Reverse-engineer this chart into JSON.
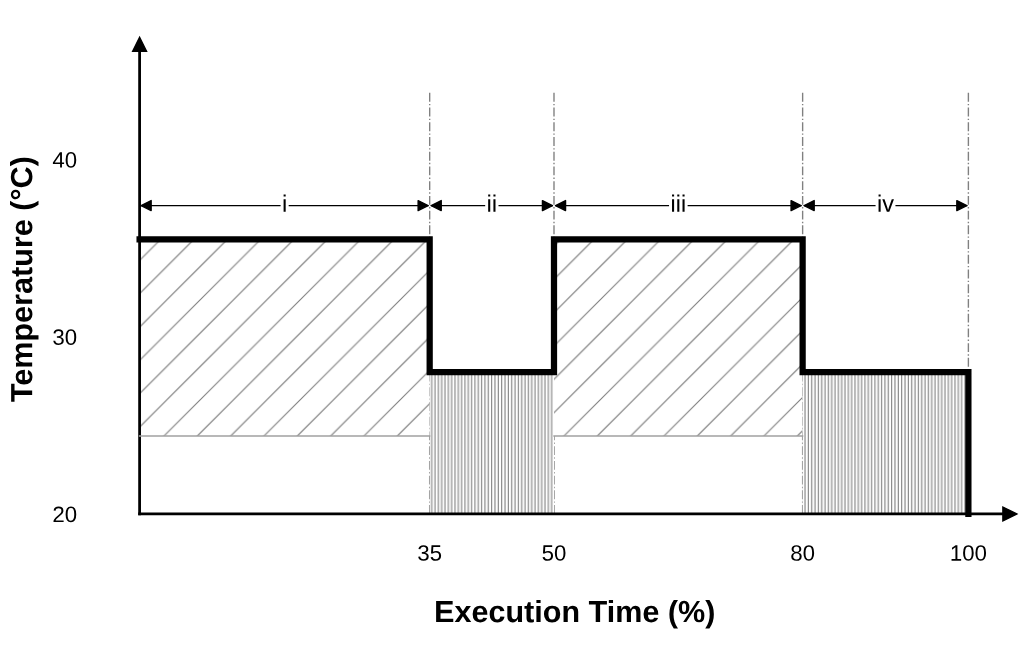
{
  "chart_data": {
    "type": "area",
    "xlabel": "Execution Time (%)",
    "ylabel": "Temperature (°C)",
    "xlim": [
      0,
      105
    ],
    "ylim": [
      20,
      46.5
    ],
    "xticks": [
      35,
      50,
      80,
      100
    ],
    "yticks": [
      20,
      30,
      40
    ],
    "series": [
      {
        "color": "#808080",
        "x": [
          0,
          35
        ],
        "values": [
          35.5,
          35.5
        ]
      },
      {
        "color": "#808080",
        "x": [
          35,
          50
        ],
        "values": [
          28,
          28
        ]
      },
      {
        "color": "#808080",
        "x": [
          50,
          80
        ],
        "values": [
          35.5,
          35.5
        ]
      },
      {
        "color": "#808080",
        "x": [
          80,
          100
        ],
        "values": [
          28,
          28
        ]
      },
      {
        "type": "line",
        "color": "#a0a0a0",
        "x": [
          0,
          35
        ],
        "values": [
          24.4,
          24.4
        ]
      },
      {
        "type": "line",
        "color": "#a0a0a0",
        "x": [
          50,
          80
        ],
        "values": [
          24.4,
          24.4
        ]
      },
      {
        "type": "line",
        "color": "#000000",
        "x": [
          0,
          35,
          35,
          50,
          50,
          80,
          80,
          100,
          100
        ],
        "values": [
          35.5,
          35.5,
          28,
          28,
          35.5,
          35.5,
          28,
          28,
          20
        ]
      }
    ],
    "ref_lines": [
      {
        "axis": "x",
        "value": 35,
        "color": "#808080",
        "line_style": "dashdot"
      },
      {
        "axis": "x",
        "value": 50,
        "color": "#808080",
        "line_style": "dashdot"
      },
      {
        "axis": "x",
        "value": 80,
        "color": "#808080",
        "line_style": "dashdot"
      },
      {
        "axis": "x",
        "value": 100,
        "color": "#808080",
        "line_style": "dashdot"
      }
    ],
    "annotations": [
      {
        "text": "i",
        "x": 17.5,
        "y": 37.4
      },
      {
        "text": "ii",
        "x": 42.5,
        "y": 37.4
      },
      {
        "text": "iii",
        "x": 65,
        "y": 37.4
      },
      {
        "text": "iv",
        "x": 90,
        "y": 37.4
      }
    ],
    "grid": false,
    "legend": false
  }
}
